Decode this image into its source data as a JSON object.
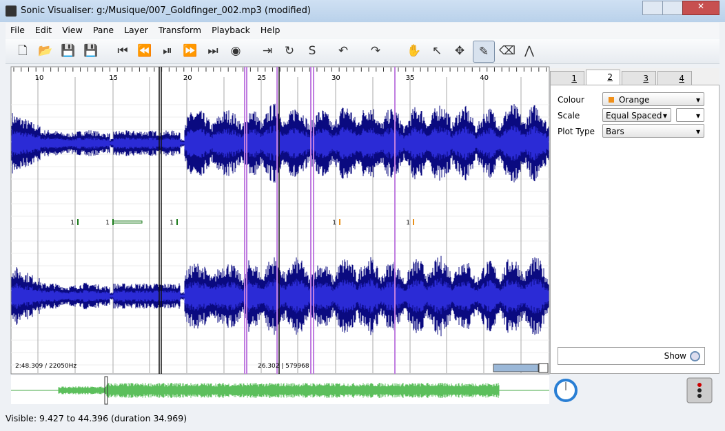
{
  "window": {
    "title": "Sonic Visualiser: g:/Musique/007_Goldfinger_002.mp3 (modified)"
  },
  "menu": [
    "File",
    "Edit",
    "View",
    "Pane",
    "Layer",
    "Transform",
    "Playback",
    "Help"
  ],
  "ruler": [
    "10",
    "15",
    "20",
    "25",
    "30",
    "35",
    "40"
  ],
  "note_labels": [
    "1",
    "1",
    "1",
    "1",
    "1"
  ],
  "overlay": {
    "left": "2:48.309 / 22050Hz",
    "right": "26.302 | 579968"
  },
  "tabs": [
    "1",
    "2",
    "3",
    "4"
  ],
  "properties": [
    {
      "label": "Colour",
      "value": "Orange"
    },
    {
      "label": "Scale",
      "value": "Equal Spaced"
    },
    {
      "label": "Plot Type",
      "value": "Bars"
    }
  ],
  "show": "Show",
  "status": "Visible: 9.427 to 44.396 (duration 34.969)"
}
